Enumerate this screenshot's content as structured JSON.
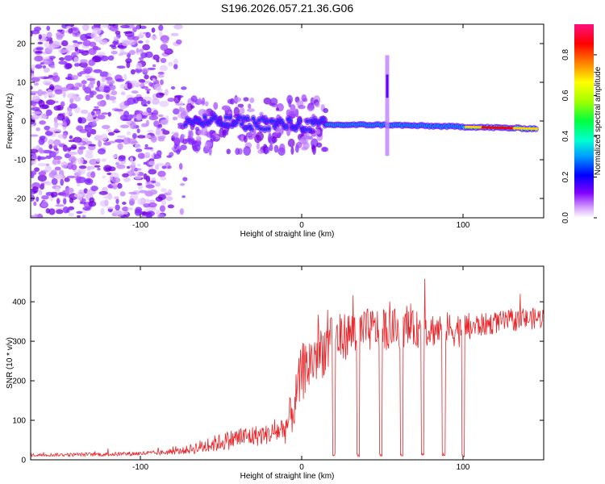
{
  "title": "S196.2026.057.21.36.G06",
  "chart_data": [
    {
      "type": "heatmap",
      "id": "spectrogram",
      "xlabel": "Height of straight line (km)",
      "ylabel": "Frequency (Hz)",
      "xlim": [
        -168,
        150
      ],
      "ylim": [
        -25,
        25
      ],
      "xticks": [
        -100,
        0,
        100
      ],
      "yticks": [
        -20,
        -10,
        0,
        10,
        20
      ],
      "colorbar": {
        "label": "Normalized spectral amplitude",
        "range": [
          0,
          0.95
        ],
        "ticks": [
          0.0,
          0.2,
          0.4,
          0.6,
          0.8
        ]
      },
      "description_points": {
        "noise_region_km": [
          -168,
          -80
        ],
        "signal_line_freq_hz": [
          [
            -75,
            0
          ],
          [
            0,
            -1
          ],
          [
            50,
            -1
          ],
          [
            100,
            -1.5
          ],
          [
            145,
            -2
          ]
        ],
        "spike_km": 53
      }
    },
    {
      "type": "line",
      "id": "snr",
      "xlabel": "Height of straight line (km)",
      "ylabel": "SNR (10 * v/v)",
      "xlim": [
        -168,
        150
      ],
      "ylim": [
        0,
        490
      ],
      "xticks": [
        -100,
        0,
        100
      ],
      "yticks": [
        0,
        100,
        200,
        300,
        400
      ],
      "color": "#e8262a",
      "envelope": {
        "x": [
          -168,
          -120,
          -90,
          -75,
          -60,
          -50,
          -40,
          -30,
          -20,
          -10,
          -5,
          0,
          10,
          20,
          30,
          45,
          60,
          80,
          100,
          110,
          125,
          150
        ],
        "mean": [
          12,
          14,
          17,
          22,
          35,
          45,
          55,
          60,
          65,
          80,
          130,
          220,
          270,
          300,
          320,
          330,
          330,
          330,
          330,
          340,
          350,
          360
        ],
        "amp": [
          8,
          10,
          12,
          16,
          40,
          45,
          55,
          55,
          50,
          80,
          120,
          150,
          150,
          130,
          120,
          110,
          100,
          90,
          90,
          60,
          55,
          55
        ]
      },
      "dropouts_km": [
        20,
        35,
        49,
        62,
        75,
        88,
        100
      ]
    }
  ]
}
